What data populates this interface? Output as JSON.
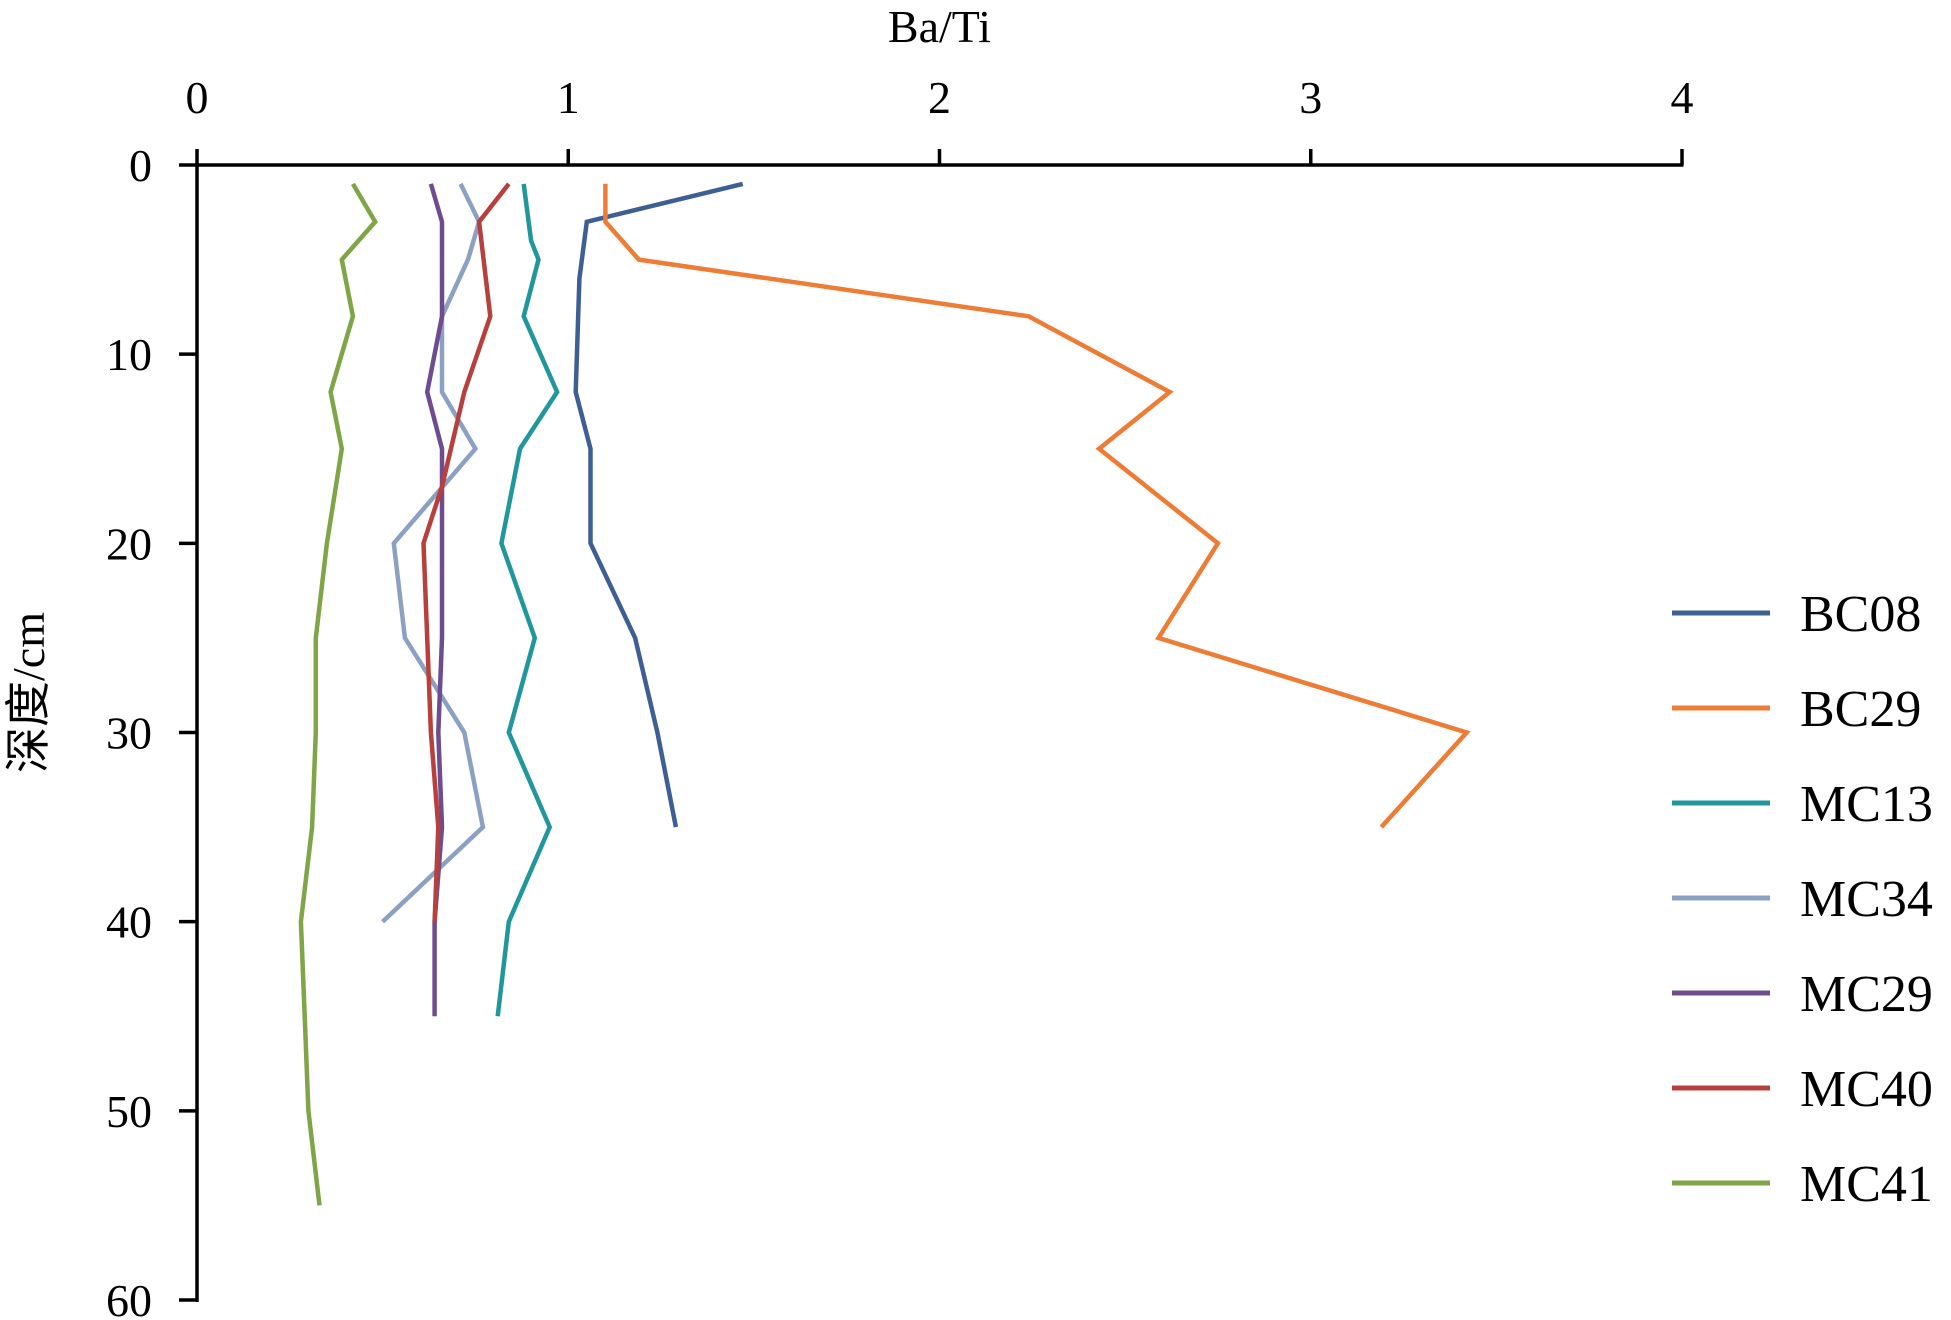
{
  "chart_data": {
    "type": "line",
    "xlabel": "Ba/Ti",
    "ylabel": "深度/cm",
    "xlim": [
      0,
      4
    ],
    "ylim": [
      0,
      60
    ],
    "x_ticks": [
      "0",
      "1",
      "2",
      "3",
      "4"
    ],
    "y_ticks": [
      "0",
      "10",
      "20",
      "30",
      "40",
      "50",
      "60"
    ],
    "x_axis_position": "top",
    "y_inverted": true,
    "grid": false,
    "legend_position": "right",
    "series": [
      {
        "name": "BC08",
        "color": "#3d5f94",
        "points": [
          [
            1.47,
            1
          ],
          [
            1.05,
            3
          ],
          [
            1.03,
            6
          ],
          [
            1.02,
            12
          ],
          [
            1.06,
            15
          ],
          [
            1.06,
            20
          ],
          [
            1.18,
            25
          ],
          [
            1.24,
            30
          ],
          [
            1.29,
            35
          ]
        ]
      },
      {
        "name": "BC29",
        "color": "#ef7c34",
        "points": [
          [
            1.1,
            1
          ],
          [
            1.1,
            3
          ],
          [
            1.19,
            5
          ],
          [
            2.24,
            8
          ],
          [
            2.62,
            12
          ],
          [
            2.43,
            15
          ],
          [
            2.75,
            20
          ],
          [
            2.59,
            25
          ],
          [
            3.42,
            30
          ],
          [
            3.19,
            35
          ]
        ]
      },
      {
        "name": "MC13",
        "color": "#20979c",
        "points": [
          [
            0.88,
            1
          ],
          [
            0.9,
            4
          ],
          [
            0.92,
            5
          ],
          [
            0.88,
            8
          ],
          [
            0.97,
            12
          ],
          [
            0.87,
            15
          ],
          [
            0.82,
            20
          ],
          [
            0.91,
            25
          ],
          [
            0.84,
            30
          ],
          [
            0.95,
            35
          ],
          [
            0.84,
            40
          ],
          [
            0.81,
            45
          ]
        ]
      },
      {
        "name": "MC34",
        "color": "#8ba1c4",
        "points": [
          [
            0.71,
            1
          ],
          [
            0.76,
            3
          ],
          [
            0.73,
            5
          ],
          [
            0.66,
            8
          ],
          [
            0.66,
            12
          ],
          [
            0.75,
            15
          ],
          [
            0.53,
            20
          ],
          [
            0.56,
            25
          ],
          [
            0.72,
            30
          ],
          [
            0.77,
            35
          ],
          [
            0.5,
            40
          ]
        ]
      },
      {
        "name": "MC29",
        "color": "#6e4c8f",
        "points": [
          [
            0.63,
            1
          ],
          [
            0.66,
            3
          ],
          [
            0.66,
            8
          ],
          [
            0.62,
            12
          ],
          [
            0.66,
            15
          ],
          [
            0.66,
            20
          ],
          [
            0.66,
            25
          ],
          [
            0.65,
            30
          ],
          [
            0.66,
            35
          ],
          [
            0.64,
            40
          ],
          [
            0.64,
            45
          ]
        ]
      },
      {
        "name": "MC40",
        "color": "#b8403c",
        "points": [
          [
            0.84,
            1
          ],
          [
            0.76,
            3
          ],
          [
            0.79,
            8
          ],
          [
            0.72,
            12
          ],
          [
            0.66,
            17
          ],
          [
            0.61,
            20
          ],
          [
            0.62,
            25
          ],
          [
            0.63,
            30
          ],
          [
            0.65,
            35
          ],
          [
            0.64,
            40
          ]
        ]
      },
      {
        "name": "MC41",
        "color": "#7fa546",
        "points": [
          [
            0.42,
            1
          ],
          [
            0.48,
            3
          ],
          [
            0.39,
            5
          ],
          [
            0.42,
            8
          ],
          [
            0.36,
            12
          ],
          [
            0.39,
            15
          ],
          [
            0.35,
            20
          ],
          [
            0.32,
            25
          ],
          [
            0.32,
            30
          ],
          [
            0.31,
            35
          ],
          [
            0.28,
            40
          ],
          [
            0.29,
            45
          ],
          [
            0.3,
            50
          ],
          [
            0.33,
            55
          ]
        ]
      }
    ]
  }
}
